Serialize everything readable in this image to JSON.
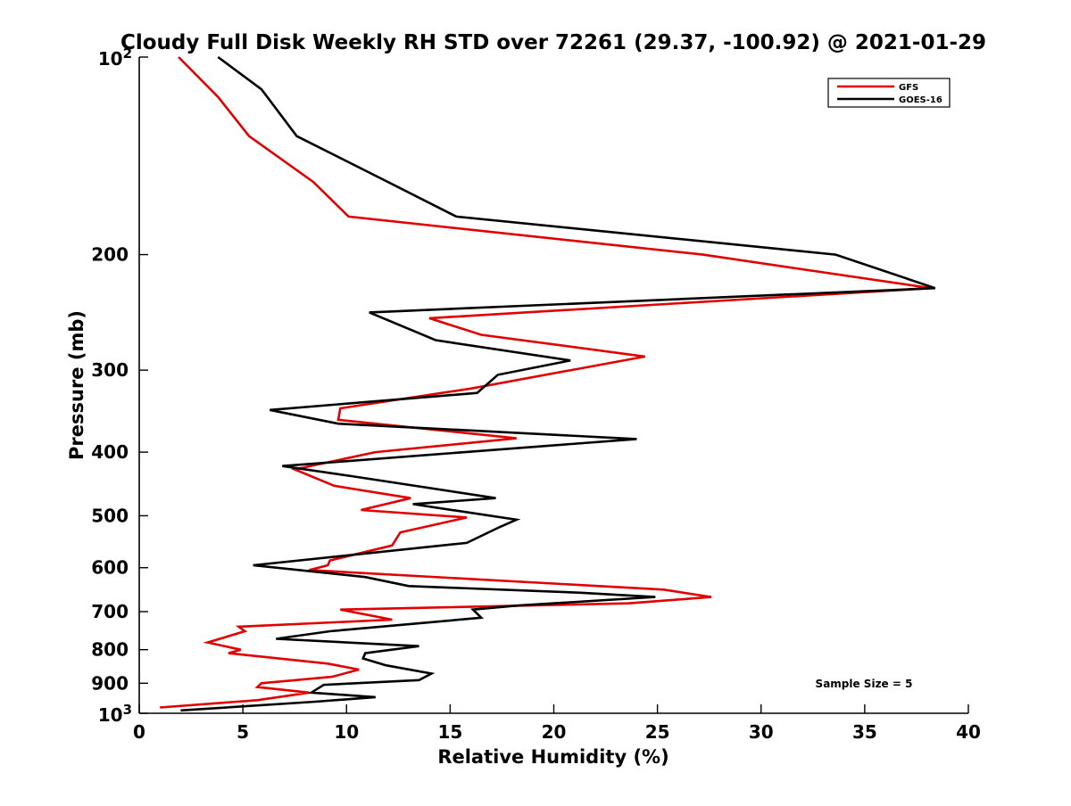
{
  "chart_data": {
    "type": "line",
    "title": "Cloudy Full Disk Weekly RH STD over 72261 (29.37, -100.92) @ 2021-01-29",
    "xlabel": "Relative Humidity (%)",
    "ylabel": "Pressure (mb)",
    "xlim": [
      0,
      40
    ],
    "ylim": [
      100,
      1000
    ],
    "y_scale": "log",
    "y_reversed": true,
    "grid": false,
    "legend_position": "top-right",
    "x_ticks": [
      "0",
      "5",
      "10",
      "15",
      "20",
      "25",
      "30",
      "35",
      "40"
    ],
    "y_ticks": [
      {
        "value": 100,
        "label": "10",
        "sup": "2"
      },
      {
        "value": 200,
        "label": "200"
      },
      {
        "value": 300,
        "label": "300"
      },
      {
        "value": 400,
        "label": "400"
      },
      {
        "value": 500,
        "label": "500"
      },
      {
        "value": 600,
        "label": "600"
      },
      {
        "value": 700,
        "label": "700"
      },
      {
        "value": 800,
        "label": "800"
      },
      {
        "value": 900,
        "label": "900"
      },
      {
        "value": 1000,
        "label": "10",
        "sup": "3"
      }
    ],
    "annotation": "Sample Size = 5",
    "series": [
      {
        "name": "GFS",
        "color": "#e00000",
        "points": [
          [
            1.9,
            100
          ],
          [
            3.8,
            115
          ],
          [
            5.3,
            132
          ],
          [
            8.4,
            155
          ],
          [
            10.1,
            175
          ],
          [
            27.2,
            200
          ],
          [
            38.2,
            225
          ],
          [
            14.0,
            250
          ],
          [
            16.5,
            265
          ],
          [
            24.4,
            286
          ],
          [
            16.0,
            320
          ],
          [
            9.7,
            343
          ],
          [
            9.6,
            357
          ],
          [
            18.2,
            381
          ],
          [
            11.4,
            400
          ],
          [
            7.5,
            425
          ],
          [
            9.4,
            450
          ],
          [
            13.1,
            470
          ],
          [
            10.7,
            490
          ],
          [
            15.8,
            503
          ],
          [
            12.6,
            530
          ],
          [
            12.2,
            555
          ],
          [
            9.2,
            585
          ],
          [
            9.1,
            595
          ],
          [
            8.2,
            605
          ],
          [
            25.3,
            648
          ],
          [
            27.6,
            665
          ],
          [
            23.6,
            680
          ],
          [
            9.7,
            695
          ],
          [
            12.2,
            720
          ],
          [
            4.8,
            738
          ],
          [
            5.1,
            750
          ],
          [
            3.3,
            780
          ],
          [
            4.9,
            800
          ],
          [
            4.3,
            810
          ],
          [
            9.1,
            840
          ],
          [
            10.6,
            858
          ],
          [
            9.3,
            880
          ],
          [
            5.9,
            900
          ],
          [
            5.7,
            912
          ],
          [
            8.2,
            930
          ],
          [
            5.7,
            955
          ],
          [
            1.0,
            980
          ]
        ]
      },
      {
        "name": "GOES-16",
        "color": "#000000",
        "points": [
          [
            3.8,
            100
          ],
          [
            5.9,
            112
          ],
          [
            7.6,
            132
          ],
          [
            12.0,
            155
          ],
          [
            15.3,
            175
          ],
          [
            33.6,
            200
          ],
          [
            38.4,
            225
          ],
          [
            11.1,
            245
          ],
          [
            14.3,
            270
          ],
          [
            20.8,
            290
          ],
          [
            17.3,
            305
          ],
          [
            16.3,
            325
          ],
          [
            6.3,
            345
          ],
          [
            9.6,
            362
          ],
          [
            24.0,
            382
          ],
          [
            6.9,
            420
          ],
          [
            10.2,
            435
          ],
          [
            17.2,
            470
          ],
          [
            13.2,
            480
          ],
          [
            18.2,
            507
          ],
          [
            17.4,
            520
          ],
          [
            15.8,
            550
          ],
          [
            5.5,
            595
          ],
          [
            10.9,
            620
          ],
          [
            13.0,
            640
          ],
          [
            21.3,
            655
          ],
          [
            24.9,
            665
          ],
          [
            18.3,
            685
          ],
          [
            16.1,
            695
          ],
          [
            16.5,
            715
          ],
          [
            9.2,
            750
          ],
          [
            6.6,
            770
          ],
          [
            13.5,
            790
          ],
          [
            10.9,
            810
          ],
          [
            10.8,
            825
          ],
          [
            11.9,
            845
          ],
          [
            14.1,
            870
          ],
          [
            13.5,
            890
          ],
          [
            8.9,
            905
          ],
          [
            8.3,
            930
          ],
          [
            11.4,
            945
          ],
          [
            8.5,
            960
          ],
          [
            2.0,
            990
          ]
        ]
      }
    ]
  }
}
